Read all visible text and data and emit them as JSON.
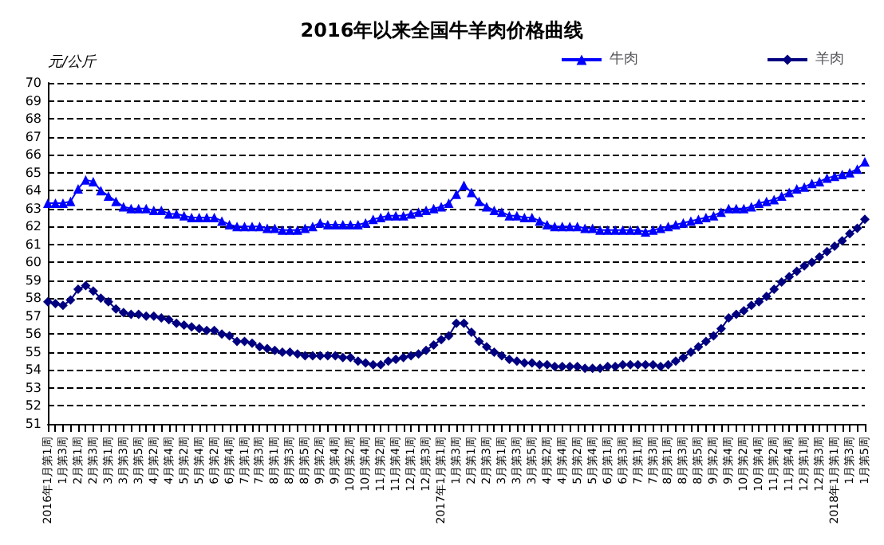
{
  "chart_data": {
    "type": "line",
    "title": "2016年以来全国牛羊肉价格曲线",
    "ylabel": "元/公斤",
    "categories": [
      "2016年1月第1周",
      null,
      "1月第3周",
      null,
      "2月第1周",
      null,
      "2月第3周",
      null,
      "3月第1周",
      null,
      "3月第3周",
      null,
      "3月第5周",
      null,
      "4月第2周",
      null,
      "4月第4周",
      null,
      "5月第2周",
      null,
      "5月第4周",
      null,
      "6月第2周",
      null,
      "6月第4周",
      null,
      "7月第1周",
      null,
      "7月第3周",
      null,
      "8月第1周",
      null,
      "8月第3周",
      null,
      "8月第5周",
      null,
      "9月第2周",
      null,
      "9月第4周",
      null,
      "10月第2周",
      null,
      "10月第4周",
      null,
      "11月第2周",
      null,
      "11月第4周",
      null,
      "12月第1周",
      null,
      "12月第3周",
      null,
      "2017年1月第1周",
      null,
      "1月第3周",
      null,
      "2月第1周",
      null,
      "2月第3周",
      null,
      "3月第1周",
      null,
      "3月第3周",
      null,
      "3月第5周",
      null,
      "4月第2周",
      null,
      "4月第4周",
      null,
      "5月第2周",
      null,
      "5月第4周",
      null,
      "6月第1周",
      null,
      "6月第3周",
      null,
      "7月第1周",
      null,
      "7月第3周",
      null,
      "8月第1周",
      null,
      "8月第3周",
      null,
      "8月第5周",
      null,
      "9月第2周",
      null,
      "9月第4周",
      null,
      "10月第2周",
      null,
      "10月第4周",
      null,
      "11月第2周",
      null,
      "11月第4周",
      null,
      "12月第1周",
      null,
      "12月第3周",
      null,
      "2018年1月第1周",
      null,
      "1月第3周",
      null,
      "1月第5周"
    ],
    "series": [
      {
        "name": "牛肉",
        "color": "#0000ff",
        "marker": "triangle",
        "values": [
          63.3,
          63.3,
          63.3,
          63.4,
          64.1,
          64.6,
          64.5,
          64.0,
          63.7,
          63.4,
          63.1,
          63.0,
          63.0,
          63.0,
          62.9,
          62.9,
          62.7,
          62.7,
          62.6,
          62.5,
          62.5,
          62.5,
          62.5,
          62.3,
          62.1,
          62.0,
          62.0,
          62.0,
          62.0,
          61.9,
          61.9,
          61.8,
          61.8,
          61.8,
          61.9,
          62.0,
          62.2,
          62.1,
          62.1,
          62.1,
          62.1,
          62.1,
          62.2,
          62.4,
          62.5,
          62.6,
          62.6,
          62.6,
          62.7,
          62.8,
          62.9,
          63.0,
          63.1,
          63.3,
          63.8,
          64.3,
          63.9,
          63.4,
          63.1,
          62.9,
          62.8,
          62.6,
          62.6,
          62.5,
          62.5,
          62.3,
          62.1,
          62.0,
          62.0,
          62.0,
          62.0,
          61.9,
          61.9,
          61.8,
          61.8,
          61.8,
          61.8,
          61.8,
          61.8,
          61.7,
          61.8,
          61.9,
          62.0,
          62.1,
          62.2,
          62.3,
          62.4,
          62.5,
          62.6,
          62.8,
          63.0,
          63.0,
          63.0,
          63.1,
          63.3,
          63.4,
          63.5,
          63.7,
          63.9,
          64.1,
          64.2,
          64.4,
          64.5,
          64.7,
          64.8,
          64.9,
          65.0,
          65.2,
          65.6
        ]
      },
      {
        "name": "羊肉",
        "color": "#000080",
        "marker": "diamond",
        "values": [
          57.8,
          57.7,
          57.6,
          57.9,
          58.5,
          58.7,
          58.4,
          58.0,
          57.8,
          57.4,
          57.2,
          57.1,
          57.1,
          57.0,
          57.0,
          56.9,
          56.8,
          56.6,
          56.5,
          56.4,
          56.3,
          56.2,
          56.2,
          56.0,
          55.9,
          55.6,
          55.6,
          55.5,
          55.3,
          55.2,
          55.1,
          55.0,
          55.0,
          54.9,
          54.8,
          54.8,
          54.8,
          54.8,
          54.8,
          54.7,
          54.7,
          54.5,
          54.4,
          54.3,
          54.3,
          54.5,
          54.6,
          54.7,
          54.8,
          54.9,
          55.1,
          55.4,
          55.7,
          55.9,
          56.6,
          56.6,
          56.1,
          55.6,
          55.3,
          55.0,
          54.8,
          54.6,
          54.5,
          54.4,
          54.4,
          54.3,
          54.3,
          54.2,
          54.2,
          54.2,
          54.2,
          54.1,
          54.1,
          54.1,
          54.2,
          54.2,
          54.3,
          54.3,
          54.3,
          54.3,
          54.3,
          54.2,
          54.3,
          54.5,
          54.7,
          55.0,
          55.3,
          55.6,
          55.9,
          56.3,
          56.9,
          57.1,
          57.3,
          57.6,
          57.8,
          58.1,
          58.5,
          58.9,
          59.2,
          59.5,
          59.8,
          60.0,
          60.3,
          60.6,
          60.9,
          61.2,
          61.6,
          61.9,
          62.4
        ]
      }
    ],
    "ylim": [
      51,
      70
    ],
    "yticks": [
      51,
      52,
      53,
      54,
      55,
      56,
      57,
      58,
      59,
      60,
      61,
      62,
      63,
      64,
      65,
      66,
      67,
      68,
      69,
      70
    ],
    "grid": "y",
    "legend": "top right",
    "line_style": "solid"
  }
}
